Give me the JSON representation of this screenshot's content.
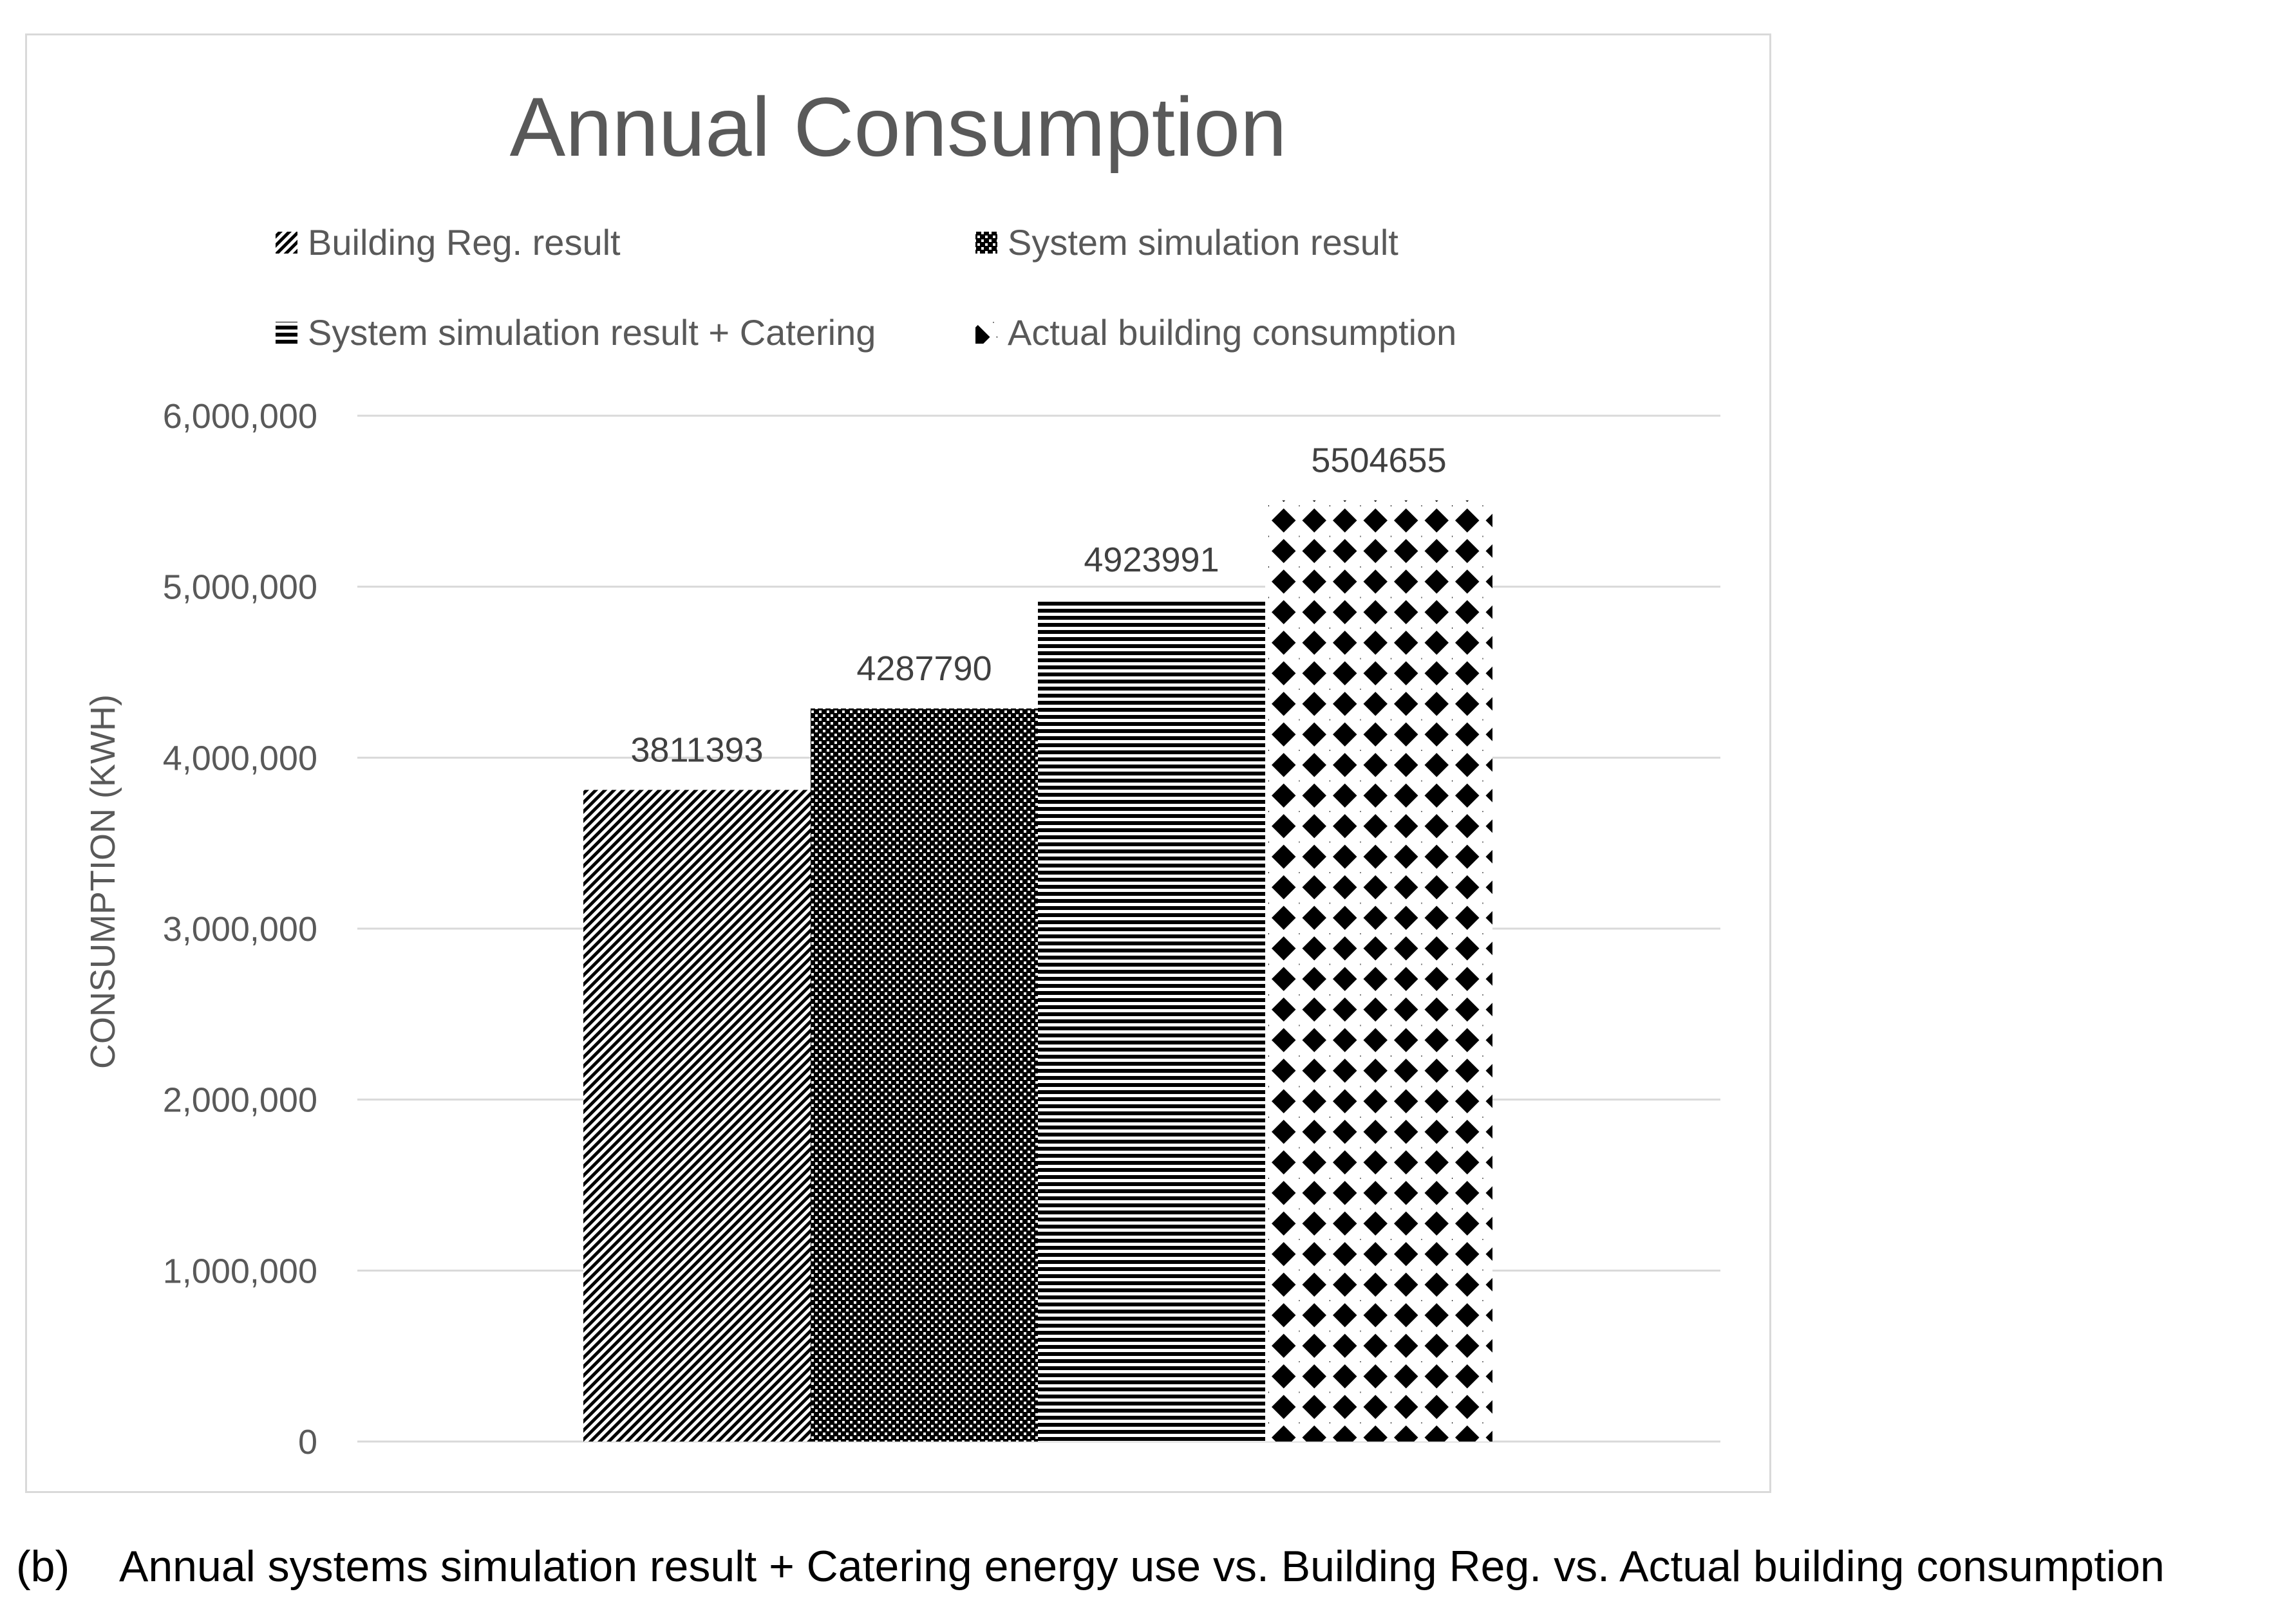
{
  "chart_data": {
    "type": "bar",
    "title": "Annual Consumption",
    "xlabel": "",
    "ylabel": "CONSUMPTION (KWH)",
    "ylim": [
      0,
      6000000
    ],
    "yticks": [
      0,
      1000000,
      2000000,
      3000000,
      4000000,
      5000000,
      6000000
    ],
    "ytick_labels": [
      "0",
      "1,000,000",
      "2,000,000",
      "3,000,000",
      "4,000,000",
      "5,000,000",
      "6,000,000"
    ],
    "grid": true,
    "legend_position": "top",
    "series": [
      {
        "name": "Building Reg. result",
        "values": [
          3811393
        ],
        "label": "3811393",
        "pattern": "diagonal"
      },
      {
        "name": "System simulation result",
        "values": [
          4287790
        ],
        "label": "4287790",
        "pattern": "checker"
      },
      {
        "name": "System simulation result + Catering",
        "values": [
          4923991
        ],
        "label": "4923991",
        "pattern": "horizontal"
      },
      {
        "name": "Actual building consumption",
        "values": [
          5504655
        ],
        "label": "5504655",
        "pattern": "diamond"
      }
    ],
    "colors": {
      "ink": "#000000",
      "grid": "#d9d9d9",
      "text": "#595959",
      "frame": "#d9d9d9"
    }
  },
  "caption": {
    "label": "(b)",
    "text": "Annual systems simulation result + Catering energy use vs. Building Reg. vs. Actual building consumption"
  }
}
